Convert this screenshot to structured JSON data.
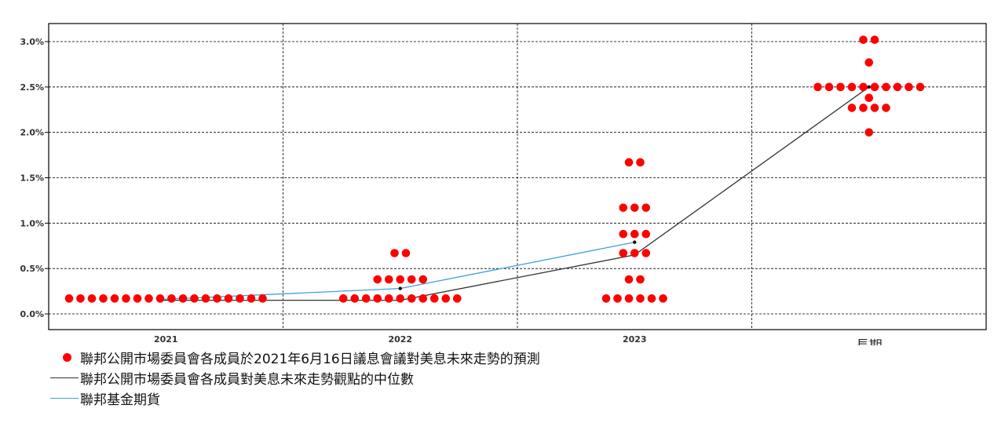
{
  "chart_data": {
    "type": "scatter",
    "yticks": [
      "3.0%",
      "2.5%",
      "2.0%",
      "1.5%",
      "1.0%",
      "0.5%",
      "0.0%"
    ],
    "ylim": [
      -0.05,
      3.15
    ],
    "categories": [
      "2021",
      "2022",
      "2023",
      "長期"
    ],
    "grid": true,
    "legend_position": "bottom-left",
    "colors": {
      "dots": "#ff0000",
      "median": "#333333",
      "futures": "#3aa0e0",
      "frame": "#000000"
    },
    "dots": [
      {
        "category": "2021",
        "rows": [
          {
            "y": 0.17,
            "count": 18
          }
        ]
      },
      {
        "category": "2022",
        "rows": [
          {
            "y": 0.17,
            "count": 11
          },
          {
            "y": 0.38,
            "count": 5
          },
          {
            "y": 0.67,
            "count": 2
          }
        ]
      },
      {
        "category": "2023",
        "rows": [
          {
            "y": 0.17,
            "count": 6
          },
          {
            "y": 0.38,
            "count": 2
          },
          {
            "y": 0.67,
            "count": 3
          },
          {
            "y": 0.88,
            "count": 3
          },
          {
            "y": 1.17,
            "count": 3
          },
          {
            "y": 1.67,
            "count": 2
          }
        ]
      },
      {
        "category": "長期",
        "rows": [
          {
            "y": 2.0,
            "count": 1
          },
          {
            "y": 2.27,
            "count": 4
          },
          {
            "y": 2.38,
            "count": 1
          },
          {
            "y": 2.5,
            "count": 10
          },
          {
            "y": 2.77,
            "count": 1
          },
          {
            "y": 3.02,
            "count": 2
          }
        ]
      }
    ],
    "series": [
      {
        "name": "聯邦公開市場委員會各成員對美息未來走勢觀點的中位數",
        "values": [
          0.15,
          0.15,
          0.65,
          2.5
        ]
      },
      {
        "name": "聯邦基金期貨",
        "values": [
          0.16,
          0.28,
          0.79
        ]
      }
    ],
    "legend": [
      "聯邦公開市場委員會各成員於2021年6月16日議息會議對美息未來走勢的預測",
      "聯邦公開市場委員會各成員對美息未來走勢觀點的中位數",
      "聯邦基金期貨"
    ]
  }
}
